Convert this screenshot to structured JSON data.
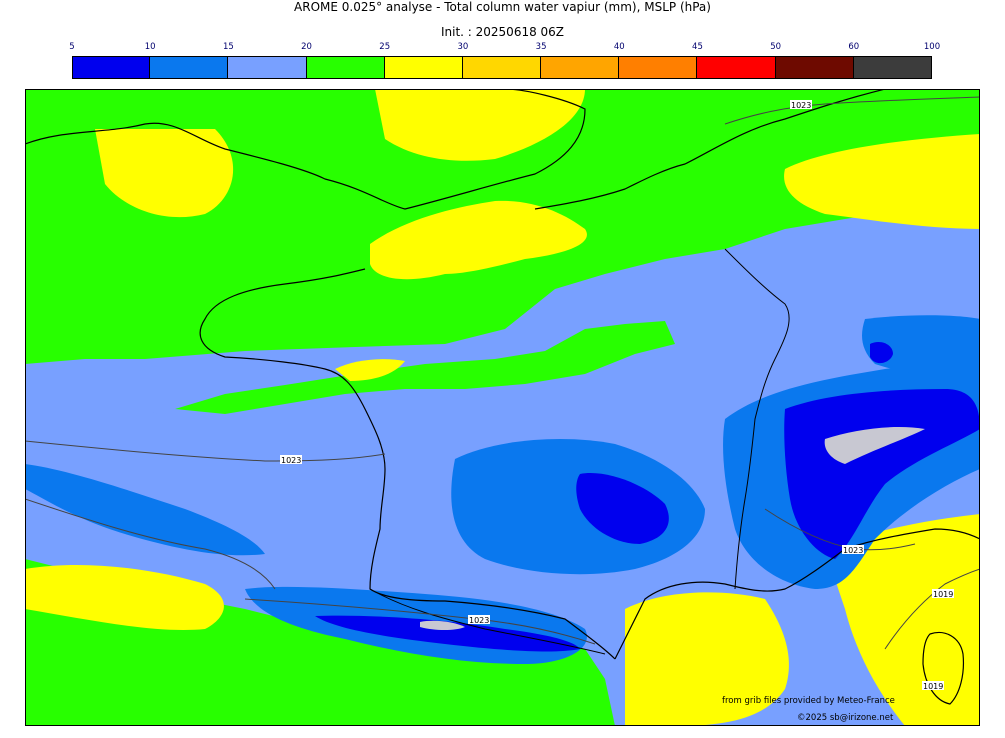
{
  "header": {
    "title": "AROME 0.025° analyse - Total column water vapiur (mm), MSLP (hPa)",
    "init": "Init. : 20250618 06Z"
  },
  "colorbar": {
    "ticks": [
      "5",
      "10",
      "15",
      "20",
      "25",
      "30",
      "35",
      "40",
      "45",
      "50",
      "60",
      "100"
    ],
    "colors": [
      "#0000ee",
      "#0a78ee",
      "#78a0ff",
      "#28ff00",
      "#ffff00",
      "#ffd700",
      "#ffa500",
      "#ff7f00",
      "#ff0000",
      "#6e0a00",
      "#3c3c3c"
    ]
  },
  "map": {
    "isobar_labels": [
      "1023",
      "1023",
      "1023",
      "1023",
      "1019",
      "1019"
    ]
  },
  "footer": {
    "source": "from grib files provided by Meteo-France",
    "copyright": "©2025 sb@irizone.net"
  }
}
